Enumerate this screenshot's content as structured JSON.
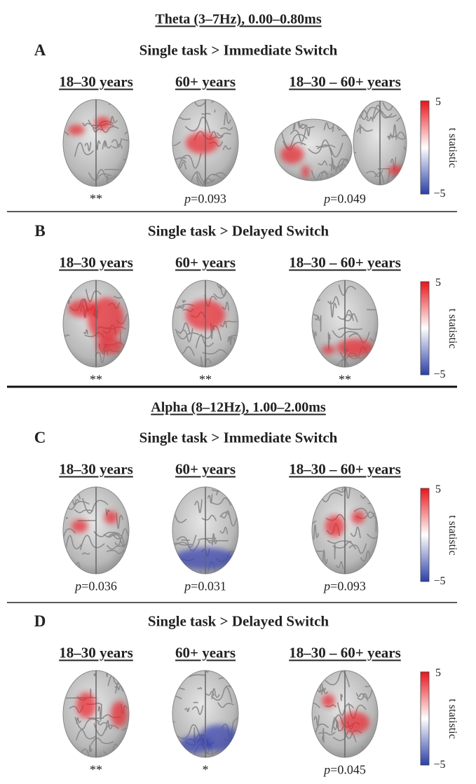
{
  "sections": [
    {
      "title": "Theta (3–7Hz), 0.00–0.80ms",
      "panels": [
        {
          "letter": "A",
          "title": "Single task > Immediate Switch",
          "columns": [
            {
              "label": "18–30 years",
              "significance": "**"
            },
            {
              "label": "60+ years",
              "significance": "p=0.093"
            },
            {
              "label": "18–30 – 60+ years",
              "significance": "p=0.049"
            }
          ],
          "colorbar": {
            "label": "t statistic",
            "max": "5",
            "min": "−5"
          }
        },
        {
          "letter": "B",
          "title": "Single task > Delayed Switch",
          "columns": [
            {
              "label": "18–30 years",
              "significance": "**"
            },
            {
              "label": "60+ years",
              "significance": "**"
            },
            {
              "label": "18–30 – 60+ years",
              "significance": "**"
            }
          ],
          "colorbar": {
            "label": "t statistic",
            "max": "5",
            "min": "−5"
          }
        }
      ]
    },
    {
      "title": "Alpha (8–12Hz), 1.00–2.00ms",
      "panels": [
        {
          "letter": "C",
          "title": "Single task > Immediate Switch",
          "columns": [
            {
              "label": "18–30 years",
              "significance": "p=0.036"
            },
            {
              "label": "60+ years",
              "significance": "p=0.031"
            },
            {
              "label": "18–30 – 60+ years",
              "significance": "p=0.093"
            }
          ],
          "colorbar": {
            "label": "t statistic",
            "max": "5",
            "min": "−5"
          }
        },
        {
          "letter": "D",
          "title": "Single task > Delayed Switch",
          "columns": [
            {
              "label": "18–30 years",
              "significance": "**"
            },
            {
              "label": "60+ years",
              "significance": "*"
            },
            {
              "label": "18–30 – 60+ years",
              "significance": "p=0.045"
            }
          ],
          "colorbar": {
            "label": "t statistic",
            "max": "5",
            "min": "−5"
          }
        }
      ]
    }
  ]
}
